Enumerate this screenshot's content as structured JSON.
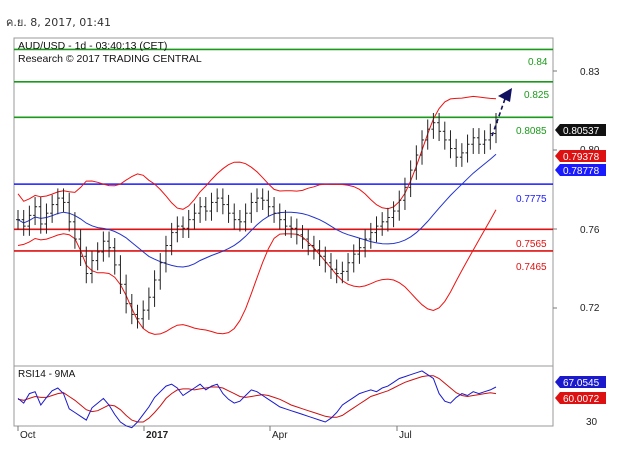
{
  "header": {
    "timestamp": "ค.ย. 8, 2017, 01:41"
  },
  "colors": {
    "resistance": "#1a9a1a",
    "pivot": "#1a1aff",
    "support": "#dd1111",
    "bollinger": "#ee1111",
    "ma": "#2233cc",
    "price": "#222222",
    "rsi": "#1a1acc",
    "rsi_ma": "#cc1111",
    "arrow": "#101060"
  },
  "chart_data": [
    {
      "type": "ohlc",
      "title": "AUD/USD - 1d - 03:40:13 (CET)",
      "subtitle": "Research © 2017 TRADING CENTRAL",
      "x_tick_labels": [
        "Oct",
        "2017",
        "Apr",
        "Jul"
      ],
      "y_tick_labels": [
        "0.83",
        "0.80",
        "0.76",
        "0.72"
      ],
      "ylim": [
        0.7,
        0.84
      ],
      "grid": false,
      "levels": [
        {
          "label": "0.84",
          "value": 0.84,
          "kind": "resistance"
        },
        {
          "label": "0.825",
          "value": 0.825,
          "kind": "resistance"
        },
        {
          "label": "0.8085",
          "value": 0.8085,
          "kind": "resistance"
        },
        {
          "label": "0.7775",
          "value": 0.7775,
          "kind": "pivot"
        },
        {
          "label": "0.7565",
          "value": 0.7565,
          "kind": "support"
        },
        {
          "label": "0.7465",
          "value": 0.7465,
          "kind": "support"
        }
      ],
      "price_tags": [
        {
          "label": "0.80537",
          "value": 0.80537,
          "kind": "last"
        },
        {
          "label": "0.79378",
          "value": 0.79378,
          "kind": "bollinger"
        },
        {
          "label": "0.78778",
          "value": 0.78778,
          "kind": "ma"
        }
      ],
      "close_series": [
        0.761,
        0.758,
        0.763,
        0.767,
        0.759,
        0.764,
        0.768,
        0.771,
        0.769,
        0.76,
        0.752,
        0.744,
        0.736,
        0.742,
        0.746,
        0.751,
        0.748,
        0.74,
        0.731,
        0.722,
        0.717,
        0.715,
        0.719,
        0.725,
        0.733,
        0.741,
        0.749,
        0.755,
        0.758,
        0.757,
        0.761,
        0.764,
        0.767,
        0.765,
        0.769,
        0.771,
        0.768,
        0.764,
        0.761,
        0.76,
        0.764,
        0.769,
        0.771,
        0.77,
        0.767,
        0.764,
        0.761,
        0.758,
        0.757,
        0.754,
        0.752,
        0.749,
        0.747,
        0.744,
        0.741,
        0.738,
        0.736,
        0.737,
        0.741,
        0.745,
        0.748,
        0.752,
        0.755,
        0.758,
        0.76,
        0.762,
        0.765,
        0.77,
        0.776,
        0.784,
        0.791,
        0.798,
        0.803,
        0.806,
        0.802,
        0.798,
        0.794,
        0.79,
        0.792,
        0.796,
        0.799,
        0.796,
        0.798,
        0.801,
        0.806
      ],
      "annotations": [
        "dashed projection arrow toward 0.825"
      ]
    },
    {
      "type": "line",
      "title": "RSI14 - 9MA",
      "y_tick_labels": [
        "30"
      ],
      "ylim": [
        25,
        85
      ],
      "price_tags": [
        {
          "label": "67.0545",
          "value": 67.0545,
          "kind": "rsi"
        },
        {
          "label": "60.0072",
          "value": 60.0072,
          "kind": "rsi_ma"
        }
      ],
      "rsi_series": [
        55,
        50,
        60,
        62,
        48,
        56,
        63,
        66,
        60,
        44,
        40,
        36,
        32,
        45,
        50,
        55,
        48,
        38,
        30,
        26,
        24,
        30,
        38,
        46,
        56,
        62,
        68,
        70,
        66,
        58,
        62,
        66,
        70,
        64,
        68,
        70,
        60,
        54,
        50,
        52,
        58,
        64,
        62,
        58,
        54,
        50,
        46,
        44,
        42,
        40,
        38,
        36,
        34,
        32,
        30,
        34,
        40,
        48,
        52,
        56,
        60,
        62,
        64,
        62,
        66,
        68,
        72,
        76,
        78,
        80,
        82,
        84,
        80,
        76,
        60,
        52,
        50,
        56,
        60,
        58,
        62,
        60,
        62,
        64,
        67
      ],
      "rsi_ma_series": [
        54,
        53,
        55,
        57,
        56,
        56,
        58,
        60,
        61,
        57,
        53,
        48,
        43,
        41,
        42,
        45,
        48,
        47,
        43,
        37,
        32,
        30,
        30,
        34,
        40,
        47,
        55,
        60,
        64,
        65,
        65,
        64,
        65,
        66,
        67,
        67,
        66,
        63,
        60,
        57,
        56,
        57,
        58,
        59,
        58,
        56,
        54,
        51,
        48,
        46,
        44,
        42,
        40,
        38,
        36,
        35,
        35,
        37,
        41,
        45,
        49,
        53,
        57,
        59,
        61,
        63,
        66,
        69,
        72,
        74,
        76,
        78,
        79,
        79,
        76,
        71,
        66,
        61,
        58,
        57,
        58,
        59,
        60,
        61,
        60
      ]
    }
  ]
}
